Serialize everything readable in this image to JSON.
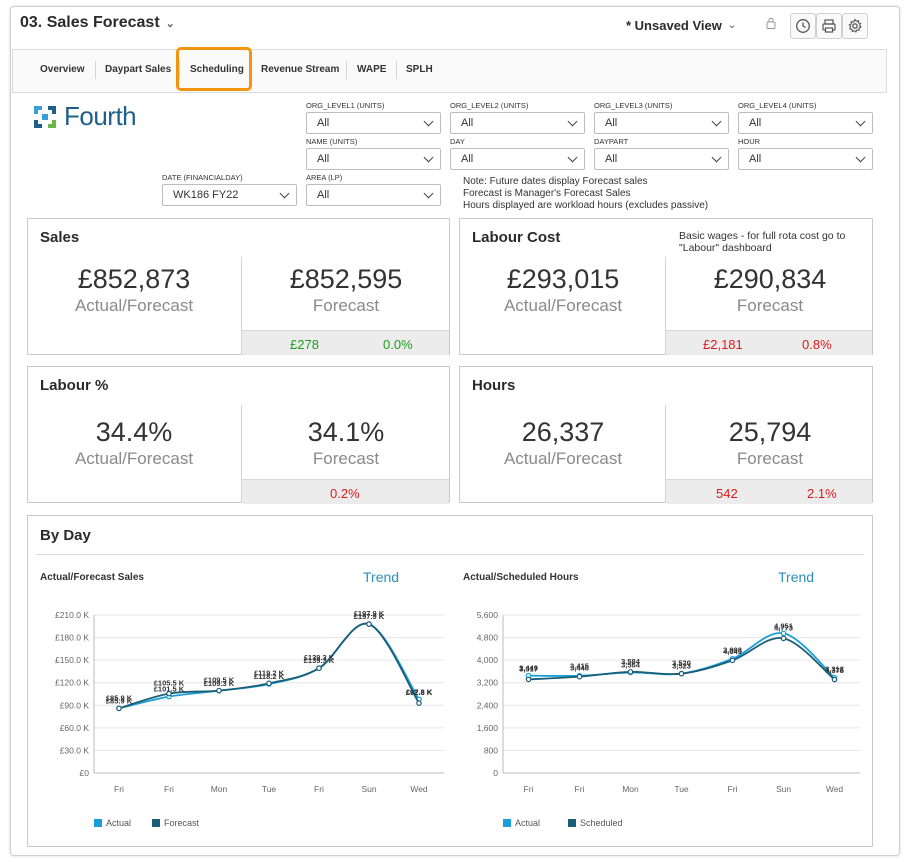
{
  "header": {
    "title": "03. Sales Forecast",
    "view_label": "* Unsaved View"
  },
  "tabs": [
    "Overview",
    "Daypart Sales",
    "Scheduling",
    "Revenue Stream",
    "WAPE",
    "SPLH"
  ],
  "logo": {
    "text": "Fourth"
  },
  "filters": {
    "org_level1": {
      "label": "ORG_LEVEL1 (UNITS)",
      "value": "All"
    },
    "org_level2": {
      "label": "ORG_LEVEL2 (UNITS)",
      "value": "All"
    },
    "org_level3": {
      "label": "ORG_LEVEL3 (UNITS)",
      "value": "All"
    },
    "org_level4": {
      "label": "ORG_LEVEL4 (UNITS)",
      "value": "All"
    },
    "name": {
      "label": "NAME (UNITS)",
      "value": "All"
    },
    "day": {
      "label": "DAY",
      "value": "All"
    },
    "daypart": {
      "label": "DAYPART",
      "value": "All"
    },
    "hour": {
      "label": "HOUR",
      "value": "All"
    },
    "date": {
      "label": "DATE (FINANCIALDAY)",
      "value": "WK186 FY22"
    },
    "area": {
      "label": "AREA (LP)",
      "value": "All"
    }
  },
  "note_lines": [
    "Note: Future dates display Forecast sales",
    "Forecast is Manager's Forecast Sales",
    "Hours displayed are workload hours (excludes passive)"
  ],
  "cards": {
    "sales": {
      "title": "Sales",
      "actual": "£852,873",
      "actual_label": "Actual/Forecast",
      "forecast": "£852,595",
      "forecast_label": "Forecast",
      "var_abs": "£278",
      "var_pct": "0.0%"
    },
    "labour_cost": {
      "title": "Labour Cost",
      "note_line1": "Basic wages - for full rota cost go to",
      "note_line2": "\"Labour\" dashboard",
      "actual": "£293,015",
      "actual_label": "Actual/Forecast",
      "forecast": "£290,834",
      "forecast_label": "Forecast",
      "var_abs": "£2,181",
      "var_pct": "0.8%"
    },
    "labour_pct": {
      "title": "Labour %",
      "actual": "34.4%",
      "actual_label": "Actual/Forecast",
      "forecast": "34.1%",
      "forecast_label": "Forecast",
      "var_pct": "0.2%"
    },
    "hours": {
      "title": "Hours",
      "actual": "26,337",
      "actual_label": "Actual/Forecast",
      "forecast": "25,794",
      "forecast_label": "Forecast",
      "var_abs": "542",
      "var_pct": "2.1%"
    }
  },
  "byday": {
    "title": "By Day"
  },
  "colors": {
    "accent": "#f4950f",
    "actual": "#1a9ed8",
    "forecast": "#1b5e78",
    "green": "#1e9e1e",
    "red": "#e01b1b",
    "trend": "#2b8fc0"
  },
  "icons": [
    "chevron-down-icon",
    "lock-icon",
    "clock-icon",
    "print-icon",
    "gear-icon"
  ],
  "chart_data": [
    {
      "type": "line",
      "title": "Actual/Forecast Sales",
      "trend_label": "Trend",
      "categories": [
        "Fri",
        "Fri",
        "Mon",
        "Tue",
        "Fri",
        "Sun",
        "Wed"
      ],
      "yticks": [
        "£0",
        "£30.0 K",
        "£60.0 K",
        "£90.0 K",
        "£120.0 K",
        "£150.0 K",
        "£180.0 K",
        "£210.0 K"
      ],
      "ylim": [
        0,
        210
      ],
      "series": [
        {
          "name": "Actual",
          "values": [
            85.9,
            101.5,
            109.3,
            118.2,
            139.3,
            197.9,
            97.8
          ],
          "labels": [
            "£85.9 K",
            "£101.5 K",
            "£109.3 K",
            "£118.2 K",
            "£139.3 K",
            "£197.9 K",
            "£97.8 K"
          ]
        },
        {
          "name": "Forecast",
          "values": [
            85.9,
            105.5,
            109.5,
            119.2,
            139.3,
            197.9,
            92.8
          ],
          "labels": [
            "£85.9 K",
            "£105.5 K",
            "£109.5 K",
            "£119.2 K",
            "£139.3 K",
            "£197.9 K",
            "£92.8 K"
          ]
        }
      ],
      "legend": "bottom-left"
    },
    {
      "type": "line",
      "title": "Actual/Scheduled Hours",
      "trend_label": "Trend",
      "categories": [
        "Fri",
        "Fri",
        "Mon",
        "Tue",
        "Fri",
        "Sun",
        "Wed"
      ],
      "yticks": [
        "0",
        "800",
        "1,600",
        "2,400",
        "3,200",
        "4,000",
        "4,800",
        "5,600"
      ],
      "ylim": [
        0,
        5600
      ],
      "series": [
        {
          "name": "Actual",
          "values": [
            3449,
            3448,
            3564,
            3523,
            4049,
            4951,
            3375
          ],
          "labels": [
            "3,449",
            "3,448",
            "3,564",
            "3,523",
            "4,049",
            "4,951",
            "3,375"
          ]
        },
        {
          "name": "Scheduled",
          "values": [
            3317,
            3415,
            3584,
            3520,
            3993,
            4773,
            3312
          ],
          "labels": [
            "3,317",
            "3,415",
            "3,584",
            "3,520",
            "3,993",
            "4,773",
            "3,312"
          ]
        }
      ],
      "legend": "bottom-left"
    }
  ]
}
